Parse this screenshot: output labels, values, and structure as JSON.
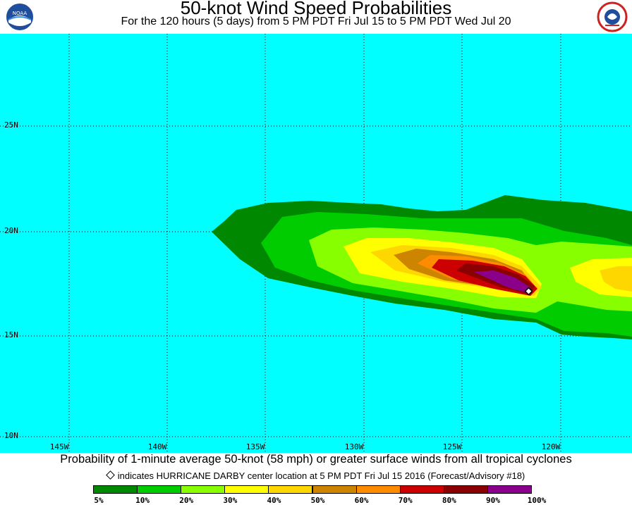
{
  "header": {
    "title": "50-knot Wind Speed Probabilities",
    "subtitle": "For the 120 hours (5 days) from 5 PM PDT Fri Jul 15 to 5 PM PDT Wed Jul 20",
    "left_logo": {
      "icon": "noaa-logo",
      "text": "NOAA"
    },
    "right_logo": {
      "icon": "nws-logo",
      "text": "NATIONAL WEATHER SERVICE"
    }
  },
  "map": {
    "ocean_color": "#00ffff",
    "lat_labels": [
      "25N",
      "20N",
      "15N",
      "10N"
    ],
    "lon_labels": [
      "145W",
      "140W",
      "135W",
      "130W",
      "125W",
      "120W"
    ]
  },
  "caption": {
    "main": "Probability of 1-minute average 50-knot (58 mph) or greater surface winds from all tropical cyclones",
    "marker_note": "indicates HURRICANE DARBY center location at 5 PM PDT Fri Jul 15 2016 (Forecast/Advisory #18)"
  },
  "legend": {
    "colors": [
      "#008800",
      "#00cc00",
      "#88ff00",
      "#ffff00",
      "#ffd700",
      "#cd8500",
      "#ff8c00",
      "#cc0000",
      "#8b0000",
      "#8b008b"
    ],
    "labels": [
      "5%",
      "10%",
      "20%",
      "30%",
      "40%",
      "50%",
      "60%",
      "70%",
      "80%",
      "90%",
      "100%"
    ]
  }
}
